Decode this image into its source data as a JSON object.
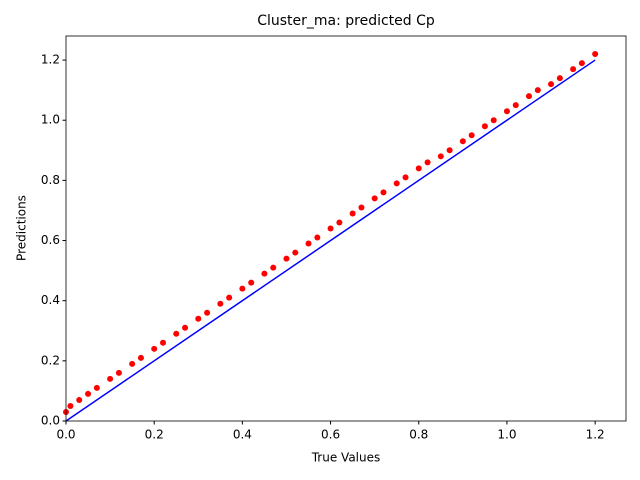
{
  "chart_data": {
    "type": "scatter",
    "title": "Cluster_ma: predicted Cp",
    "xlabel": "True Values",
    "ylabel": "Predictions",
    "xlim": [
      0,
      1.27
    ],
    "ylim": [
      0,
      1.28
    ],
    "xticks": [
      {
        "value": 0,
        "label": "0.0"
      },
      {
        "value": 0.2,
        "label": "0.2"
      },
      {
        "value": 0.4,
        "label": "0.4"
      },
      {
        "value": 0.6,
        "label": "0.6"
      },
      {
        "value": 0.8,
        "label": "0.8"
      },
      {
        "value": 1.0,
        "label": "1.0"
      },
      {
        "value": 1.2,
        "label": "1.2"
      }
    ],
    "yticks": [
      {
        "value": 0,
        "label": "0.0"
      },
      {
        "value": 0.2,
        "label": "0.2"
      },
      {
        "value": 0.4,
        "label": "0.4"
      },
      {
        "value": 0.6,
        "label": "0.6"
      },
      {
        "value": 0.8,
        "label": "0.8"
      },
      {
        "value": 1.0,
        "label": "1.0"
      },
      {
        "value": 1.2,
        "label": "1.2"
      }
    ],
    "series": [
      {
        "type": "scatter",
        "color": "#ff0000",
        "x": [
          0,
          0.01,
          0.03,
          0.05,
          0.07,
          0.1,
          0.12,
          0.15,
          0.17,
          0.2,
          0.22,
          0.25,
          0.27,
          0.3,
          0.32,
          0.35,
          0.37,
          0.4,
          0.42,
          0.45,
          0.47,
          0.5,
          0.52,
          0.55,
          0.57,
          0.6,
          0.62,
          0.65,
          0.67,
          0.7,
          0.72,
          0.75,
          0.77,
          0.8,
          0.82,
          0.85,
          0.87,
          0.9,
          0.92,
          0.95,
          0.97,
          1.0,
          1.02,
          1.05,
          1.07,
          1.1,
          1.12,
          1.15,
          1.17,
          1.2
        ],
        "values": [
          0.03,
          0.05,
          0.07,
          0.09,
          0.11,
          0.14,
          0.16,
          0.19,
          0.21,
          0.24,
          0.26,
          0.29,
          0.31,
          0.34,
          0.36,
          0.39,
          0.41,
          0.44,
          0.46,
          0.49,
          0.51,
          0.54,
          0.56,
          0.59,
          0.61,
          0.64,
          0.66,
          0.69,
          0.71,
          0.74,
          0.76,
          0.79,
          0.81,
          0.84,
          0.86,
          0.88,
          0.9,
          0.93,
          0.95,
          0.98,
          1.0,
          1.03,
          1.05,
          1.08,
          1.1,
          1.12,
          1.14,
          1.17,
          1.19,
          1.22
        ]
      },
      {
        "type": "line",
        "color": "#0000ff",
        "x": [
          0,
          1.2
        ],
        "values": [
          0,
          1.2
        ]
      }
    ]
  }
}
